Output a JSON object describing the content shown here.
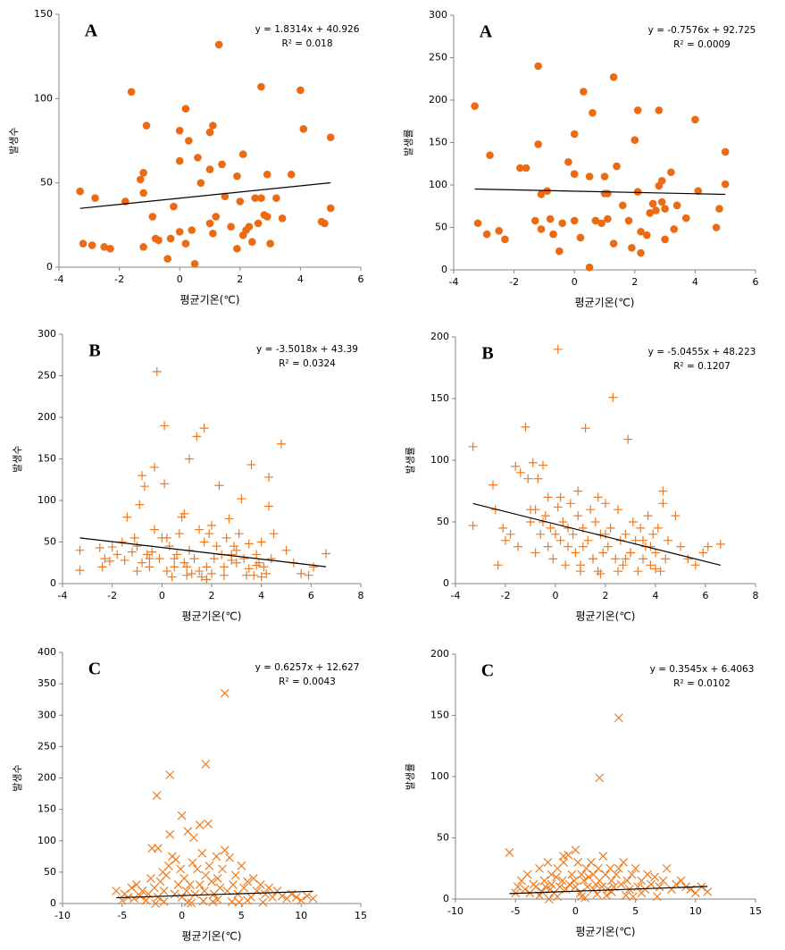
{
  "chart_data": [
    {
      "type": "scatter",
      "label": "A",
      "equation": "y = 1.8314x + 40.926",
      "r2": "R² = 0.018",
      "trend": {
        "slope": 1.8314,
        "intercept": 40.926
      },
      "x_label": "평균기온(℃)",
      "y_label": "발생수",
      "marker": "circle",
      "color": "#ec6b12",
      "x": [
        -3.3,
        -3.2,
        -2.9,
        -2.8,
        -2.5,
        -2.3,
        -1.8,
        -1.6,
        -1.3,
        -1.2,
        -1.2,
        -1.2,
        -1.1,
        -0.9,
        -0.8,
        -0.7,
        -0.4,
        -0.3,
        -0.2,
        0,
        0,
        0,
        0.2,
        0.2,
        0.3,
        0.4,
        0.5,
        0.6,
        0.7,
        1,
        1,
        1,
        1.1,
        1.1,
        1.2,
        1.3,
        1.4,
        1.5,
        1.7,
        1.9,
        1.9,
        2,
        2.1,
        2.1,
        2.2,
        2.3,
        2.4,
        2.5,
        2.6,
        2.7,
        2.7,
        2.8,
        2.9,
        2.9,
        3,
        3.2,
        3.4,
        3.7,
        4,
        4.1,
        4.7,
        4.8,
        5,
        5
      ],
      "y": [
        45,
        14,
        13,
        41,
        12,
        11,
        39,
        104,
        52,
        44,
        56,
        12,
        84,
        30,
        17,
        16,
        5,
        17,
        36,
        81,
        63,
        21,
        94,
        14,
        75,
        22,
        2,
        65,
        50,
        58,
        80,
        26,
        84,
        20,
        30,
        132,
        61,
        42,
        24,
        54,
        11,
        39,
        67,
        19,
        22,
        24,
        15,
        41,
        26,
        107,
        41,
        31,
        30,
        55,
        14,
        41,
        29,
        55,
        105,
        82,
        27,
        26,
        77,
        35
      ],
      "xlim": [
        -4,
        6
      ],
      "xticks": [
        -4,
        -2,
        0,
        2,
        4,
        6
      ],
      "ylim": [
        0,
        150
      ],
      "yticks": [
        0,
        50,
        100,
        150
      ]
    },
    {
      "type": "scatter",
      "label": "A",
      "equation": "y = -0.7576x + 92.725",
      "r2": "R² = 0.0009",
      "trend": {
        "slope": -0.7576,
        "intercept": 92.725
      },
      "x_label": "평균기온(℃)",
      "y_label": "발생률",
      "marker": "circle",
      "color": "#ec6b12",
      "x": [
        -3.3,
        -3.2,
        -2.9,
        -2.8,
        -2.5,
        -2.3,
        -1.8,
        -1.6,
        -1.3,
        -1.2,
        -1.2,
        -1.1,
        -1.1,
        -0.9,
        -0.8,
        -0.7,
        -0.5,
        -0.4,
        -0.2,
        0,
        0,
        0,
        0.2,
        0.3,
        0.5,
        0.5,
        0.6,
        0.7,
        0.9,
        1,
        1,
        1.1,
        1.1,
        1.3,
        1.3,
        1.4,
        1.6,
        1.8,
        1.9,
        2,
        2.1,
        2.1,
        2.2,
        2.2,
        2.4,
        2.5,
        2.6,
        2.7,
        2.8,
        2.8,
        2.9,
        2.9,
        3,
        3,
        3.2,
        3.3,
        3.4,
        3.7,
        4,
        4.1,
        4.7,
        4.8,
        5,
        5
      ],
      "y": [
        193,
        55,
        42,
        135,
        46,
        36,
        120,
        120,
        58,
        240,
        148,
        48,
        89,
        93,
        60,
        42,
        22,
        55,
        127,
        160,
        58,
        113,
        38,
        210,
        3,
        110,
        185,
        58,
        55,
        90,
        110,
        60,
        90,
        227,
        31,
        122,
        76,
        58,
        26,
        153,
        92,
        188,
        20,
        45,
        41,
        67,
        78,
        70,
        188,
        99,
        105,
        80,
        72,
        36,
        115,
        48,
        76,
        61,
        177,
        93,
        50,
        72,
        139,
        101
      ],
      "xlim": [
        -4,
        6
      ],
      "xticks": [
        -4,
        -2,
        0,
        2,
        4,
        6
      ],
      "ylim": [
        0,
        300
      ],
      "yticks": [
        0,
        50,
        100,
        150,
        200,
        250,
        300
      ]
    },
    {
      "type": "scatter",
      "label": "B",
      "equation": "y = -3.5018x + 43.39",
      "r2": "R² = 0.0324",
      "trend": {
        "slope": -3.5018,
        "intercept": 43.39
      },
      "x_label": "평균기온(℃)",
      "y_label": "발생수",
      "marker": "plus",
      "color": "#ef7a22",
      "x": [
        -3.3,
        -3.3,
        -2.5,
        -2.4,
        -2.3,
        -2.1,
        -2,
        -1.8,
        -1.6,
        -1.5,
        -1.4,
        -1.2,
        -1.1,
        -1,
        -0.9,
        -0.8,
        -0.8,
        -0.7,
        -0.6,
        -0.5,
        -0.4,
        -0.3,
        -0.3,
        -0.2,
        -0.1,
        0,
        0.1,
        0.1,
        0.2,
        0.3,
        0.4,
        0.5,
        0.6,
        0.7,
        0.8,
        0.9,
        0.9,
        1,
        1.1,
        1.1,
        1.2,
        1.3,
        1.4,
        1.5,
        1.6,
        1.7,
        1.7,
        1.8,
        1.9,
        2,
        2.1,
        2.2,
        2.3,
        2.4,
        2.5,
        2.6,
        2.7,
        2.8,
        2.9,
        3,
        3.1,
        3.2,
        3.3,
        3.4,
        3.5,
        3.6,
        3.7,
        3.8,
        3.9,
        4,
        4.1,
        4.2,
        4.3,
        4.3,
        4.4,
        4.5,
        4.8,
        5,
        5.3,
        5.6,
        5.9,
        6.1,
        6.6,
        0.5,
        1.5,
        2.5,
        3.5,
        -0.5,
        0.2,
        1,
        2,
        3,
        4,
        -1,
        1.8,
        2.8,
        3.8
      ],
      "y": [
        40,
        16,
        43,
        20,
        30,
        27,
        44,
        35,
        50,
        28,
        80,
        38,
        55,
        45,
        95,
        130,
        25,
        117,
        35,
        20,
        38,
        140,
        65,
        255,
        30,
        55,
        120,
        190,
        15,
        45,
        8,
        20,
        35,
        60,
        80,
        84,
        25,
        10,
        150,
        40,
        12,
        30,
        177,
        65,
        8,
        187,
        50,
        20,
        60,
        12,
        30,
        45,
        118,
        35,
        20,
        55,
        78,
        35,
        45,
        25,
        60,
        102,
        30,
        10,
        48,
        143,
        10,
        35,
        25,
        50,
        20,
        12,
        128,
        93,
        30,
        60,
        168,
        40,
        25,
        12,
        10,
        20,
        36,
        30,
        15,
        10,
        18,
        30,
        55,
        20,
        70,
        40,
        8,
        15,
        5,
        28,
        22
      ],
      "xlim": [
        -4,
        8
      ],
      "xticks": [
        -4,
        -2,
        0,
        2,
        4,
        6,
        8
      ],
      "ylim": [
        0,
        300
      ],
      "yticks": [
        0,
        50,
        100,
        150,
        200,
        250,
        300
      ]
    },
    {
      "type": "scatter",
      "label": "B",
      "equation": "y = -5.0455x + 48.223",
      "r2": "R² = 0.1207",
      "trend": {
        "slope": -5.0455,
        "intercept": 48.223
      },
      "x_label": "평균기온(℃)",
      "y_label": "발생률",
      "marker": "plus",
      "color": "#ef7a22",
      "x": [
        -3.3,
        -3.3,
        -2.5,
        -2.4,
        -2.3,
        -2.1,
        -2,
        -1.8,
        -1.6,
        -1.5,
        -1.4,
        -1.2,
        -1.1,
        -1,
        -0.9,
        -0.8,
        -0.8,
        -0.7,
        -0.6,
        -0.5,
        -0.4,
        -0.3,
        -0.3,
        -0.2,
        -0.1,
        0,
        0.1,
        0.1,
        0.2,
        0.3,
        0.4,
        0.5,
        0.6,
        0.7,
        0.8,
        0.9,
        0.9,
        1,
        1.1,
        1.1,
        1.2,
        1.3,
        1.4,
        1.5,
        1.6,
        1.7,
        1.7,
        1.8,
        1.9,
        2,
        2.1,
        2.2,
        2.3,
        2.4,
        2.5,
        2.6,
        2.7,
        2.8,
        2.9,
        3,
        3.1,
        3.2,
        3.3,
        3.4,
        3.5,
        3.6,
        3.7,
        3.8,
        3.9,
        4,
        4.1,
        4.2,
        4.3,
        4.3,
        4.4,
        4.5,
        4.8,
        5,
        5.3,
        5.6,
        5.9,
        6.1,
        6.6,
        0.5,
        1.5,
        2.5,
        3.5,
        -0.5,
        0.2,
        1,
        2,
        3,
        4,
        -1,
        1.8,
        2.8,
        3.8
      ],
      "y": [
        111,
        47,
        80,
        60,
        15,
        45,
        35,
        40,
        95,
        30,
        90,
        127,
        85,
        50,
        98,
        60,
        25,
        85,
        40,
        96,
        55,
        70,
        30,
        45,
        20,
        40,
        62,
        190,
        35,
        50,
        15,
        30,
        65,
        40,
        25,
        75,
        55,
        10,
        45,
        30,
        126,
        35,
        60,
        20,
        50,
        10,
        70,
        40,
        25,
        65,
        30,
        45,
        151,
        20,
        60,
        35,
        15,
        40,
        117,
        25,
        50,
        35,
        10,
        45,
        20,
        30,
        55,
        15,
        40,
        25,
        45,
        10,
        75,
        65,
        20,
        35,
        55,
        30,
        20,
        15,
        25,
        30,
        32,
        45,
        20,
        10,
        35,
        50,
        70,
        15,
        40,
        25,
        12,
        60,
        8,
        20,
        30
      ],
      "xlim": [
        -4,
        8
      ],
      "xticks": [
        -4,
        -2,
        0,
        2,
        4,
        6,
        8
      ],
      "ylim": [
        0,
        200
      ],
      "yticks": [
        0,
        50,
        100,
        150,
        200
      ]
    },
    {
      "type": "scatter",
      "label": "C",
      "equation": "y = 0.6257x + 12.627",
      "r2": "R² = 0.0043",
      "trend": {
        "slope": 0.6257,
        "intercept": 12.627
      },
      "x_label": "평균기온(℃)",
      "y_label": "발생수",
      "marker": "x",
      "color": "#f07a1c",
      "x": [
        -5.5,
        -5,
        -4.8,
        -4.5,
        -4.2,
        -4,
        -3.8,
        -3.5,
        -3.3,
        -3,
        -2.8,
        -2.6,
        -2.5,
        -2.3,
        -2.1,
        -2,
        -2,
        -1.8,
        -1.6,
        -1.5,
        -1.3,
        -1.1,
        -1,
        -1,
        -0.8,
        -0.6,
        -0.5,
        -0.3,
        -0.1,
        0,
        0,
        0.2,
        0.4,
        0.5,
        0.7,
        0.9,
        1,
        1.1,
        1.3,
        1.5,
        1.5,
        1.7,
        1.9,
        2,
        2,
        2.2,
        2.3,
        2.5,
        2.7,
        2.9,
        3,
        3.2,
        3.4,
        3.6,
        3.6,
        3.8,
        4,
        4.3,
        4.5,
        4.7,
        5,
        5.2,
        5.5,
        5.8,
        6,
        6.3,
        6.6,
        7,
        7.3,
        7.6,
        8,
        8.4,
        8.8,
        9.2,
        9.6,
        10,
        10.5,
        11,
        -3,
        -1.5,
        0.5,
        1.8,
        3,
        4.2,
        5.5,
        6.8,
        -2.2,
        0.8,
        2.6,
        4.8
      ],
      "y": [
        20,
        5,
        15,
        10,
        25,
        8,
        30,
        12,
        20,
        5,
        15,
        40,
        88,
        25,
        172,
        88,
        10,
        35,
        50,
        20,
        45,
        60,
        205,
        110,
        75,
        15,
        70,
        30,
        55,
        140,
        10,
        40,
        20,
        115,
        30,
        65,
        105,
        15,
        55,
        125,
        30,
        80,
        20,
        222,
        45,
        127,
        60,
        35,
        15,
        75,
        40,
        25,
        55,
        335,
        85,
        20,
        73,
        30,
        45,
        15,
        60,
        25,
        35,
        10,
        40,
        20,
        30,
        15,
        25,
        10,
        20,
        12,
        8,
        15,
        10,
        5,
        12,
        8,
        5,
        3,
        2,
        4,
        6,
        3,
        5,
        2,
        0,
        1,
        3,
        2
      ],
      "xlim": [
        -10,
        15
      ],
      "xticks": [
        -10,
        -5,
        0,
        5,
        10,
        15
      ],
      "ylim": [
        0,
        400
      ],
      "yticks": [
        0,
        50,
        100,
        150,
        200,
        250,
        300,
        350,
        400
      ]
    },
    {
      "type": "scatter",
      "label": "C",
      "equation": "y = 0.3545x + 6.4063",
      "r2": "R² = 0.0102",
      "trend": {
        "slope": 0.3545,
        "intercept": 6.4063
      },
      "x_label": "평균기온(℃)",
      "y_label": "발생률",
      "marker": "x",
      "color": "#f07a1c",
      "x": [
        -5.5,
        -5,
        -4.8,
        -4.5,
        -4.2,
        -4,
        -3.8,
        -3.5,
        -3.3,
        -3,
        -2.8,
        -2.6,
        -2.5,
        -2.3,
        -2.1,
        -2,
        -2,
        -1.8,
        -1.6,
        -1.5,
        -1.3,
        -1.1,
        -1,
        -1,
        -0.8,
        -0.6,
        -0.5,
        -0.3,
        -0.1,
        0,
        0,
        0.2,
        0.4,
        0.5,
        0.7,
        0.9,
        1,
        1.1,
        1.3,
        1.5,
        1.5,
        1.7,
        1.9,
        2,
        2,
        2.2,
        2.3,
        2.5,
        2.7,
        2.9,
        3,
        3.2,
        3.4,
        3.6,
        3.6,
        3.8,
        4,
        4.3,
        4.5,
        4.7,
        5,
        5.2,
        5.5,
        5.8,
        6,
        6.3,
        6.6,
        7,
        7.3,
        7.6,
        8,
        8.4,
        8.8,
        9.2,
        9.6,
        10,
        10.5,
        11,
        -3,
        -1.5,
        0.5,
        1.8,
        3,
        4.2,
        5.5,
        6.8,
        -2.2,
        0.8,
        2.6,
        4.8
      ],
      "y": [
        38,
        5,
        10,
        15,
        8,
        20,
        5,
        12,
        10,
        25,
        6,
        15,
        10,
        30,
        8,
        12,
        20,
        5,
        18,
        25,
        10,
        15,
        30,
        35,
        8,
        36,
        12,
        20,
        15,
        40,
        10,
        30,
        5,
        20,
        15,
        25,
        10,
        18,
        30,
        8,
        20,
        12,
        25,
        99,
        15,
        10,
        35,
        20,
        8,
        25,
        15,
        10,
        20,
        148,
        25,
        12,
        30,
        15,
        8,
        20,
        25,
        10,
        15,
        8,
        20,
        12,
        18,
        10,
        15,
        25,
        8,
        12,
        15,
        10,
        8,
        5,
        10,
        6,
        3,
        2,
        2,
        4,
        6,
        3,
        5,
        2,
        0,
        1,
        3,
        2
      ],
      "xlim": [
        -10,
        15
      ],
      "xticks": [
        -10,
        -5,
        0,
        5,
        10,
        15
      ],
      "ylim": [
        0,
        200
      ],
      "yticks": [
        0,
        50,
        100,
        150,
        200
      ]
    }
  ]
}
